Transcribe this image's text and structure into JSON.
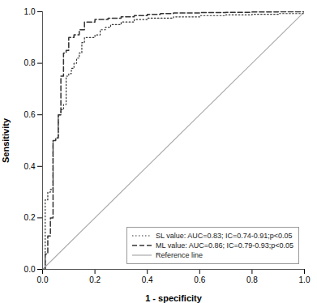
{
  "chart_data": {
    "type": "line",
    "xlabel": "1 - specificity",
    "ylabel": "Sensitivity",
    "xlim": [
      0.0,
      1.0
    ],
    "ylim": [
      0.0,
      1.0
    ],
    "xticks": [
      {
        "value": 0.0,
        "label": "0.0"
      },
      0.2,
      0.4,
      0.6,
      0.8,
      {
        "value": 1.0,
        "label": "1.0"
      }
    ],
    "yticks": [
      {
        "value": 0.0,
        "label": "0.0"
      },
      0.2,
      0.4,
      0.6,
      0.8,
      {
        "value": 1.0,
        "label": "1.0"
      }
    ],
    "grid": false,
    "legend": "lower right",
    "series": [
      {
        "name": "SL value: AUC=0.83; IC=0.74-0.91;p<0.05",
        "color": "#333333",
        "line_style": "dotted",
        "x": [
          0.0,
          0.01,
          0.01,
          0.02,
          0.02,
          0.03,
          0.03,
          0.04,
          0.04,
          0.05,
          0.05,
          0.06,
          0.06,
          0.07,
          0.07,
          0.08,
          0.08,
          0.09,
          0.09,
          0.1,
          0.1,
          0.11,
          0.11,
          0.12,
          0.12,
          0.13,
          0.13,
          0.14,
          0.14,
          0.15,
          0.15,
          0.16,
          0.16,
          0.2,
          0.2,
          0.22,
          0.22,
          0.24,
          0.24,
          0.26,
          0.26,
          0.3,
          0.3,
          0.35,
          0.35,
          0.4,
          0.4,
          0.5,
          0.5,
          0.6,
          0.6,
          0.7,
          0.7,
          0.8,
          0.8,
          0.9,
          0.9,
          1.0
        ],
        "values": [
          0.0,
          0.0,
          0.27,
          0.27,
          0.3,
          0.3,
          0.31,
          0.31,
          0.5,
          0.5,
          0.51,
          0.51,
          0.6,
          0.6,
          0.62,
          0.62,
          0.64,
          0.64,
          0.75,
          0.75,
          0.76,
          0.76,
          0.78,
          0.78,
          0.8,
          0.8,
          0.82,
          0.82,
          0.84,
          0.84,
          0.88,
          0.88,
          0.9,
          0.9,
          0.91,
          0.91,
          0.93,
          0.93,
          0.94,
          0.94,
          0.95,
          0.95,
          0.96,
          0.96,
          0.97,
          0.97,
          0.975,
          0.975,
          0.98,
          0.98,
          0.985,
          0.985,
          0.988,
          0.988,
          0.99,
          0.99,
          0.993,
          0.993
        ]
      },
      {
        "name": "ML value: AUC=0.86; IC=0.79-0.93;p<0.05",
        "color": "#333333",
        "line_style": "dashed",
        "x": [
          0.0,
          0.01,
          0.01,
          0.02,
          0.02,
          0.03,
          0.03,
          0.04,
          0.04,
          0.05,
          0.05,
          0.06,
          0.06,
          0.07,
          0.07,
          0.08,
          0.08,
          0.09,
          0.09,
          0.1,
          0.1,
          0.12,
          0.12,
          0.14,
          0.14,
          0.16,
          0.16,
          0.2,
          0.2,
          0.25,
          0.25,
          0.3,
          0.3,
          0.35,
          0.35,
          0.4,
          0.4,
          0.45,
          0.45,
          0.5,
          0.5,
          0.6,
          0.6,
          0.7,
          0.7,
          0.8,
          0.8,
          0.9,
          0.9,
          1.0
        ],
        "values": [
          0.0,
          0.0,
          0.06,
          0.06,
          0.13,
          0.13,
          0.2,
          0.2,
          0.5,
          0.5,
          0.51,
          0.51,
          0.6,
          0.6,
          0.75,
          0.75,
          0.84,
          0.84,
          0.85,
          0.85,
          0.9,
          0.9,
          0.91,
          0.91,
          0.93,
          0.93,
          0.96,
          0.96,
          0.97,
          0.97,
          0.975,
          0.975,
          0.98,
          0.98,
          0.985,
          0.985,
          0.99,
          0.99,
          0.993,
          0.993,
          0.995,
          0.995,
          0.997,
          0.997,
          0.998,
          0.998,
          0.999,
          0.999,
          1.0,
          1.0
        ]
      },
      {
        "name": "Reference line",
        "color": "#aaaaaa",
        "line_style": "solid",
        "x": [
          0,
          1
        ],
        "values": [
          0,
          1
        ]
      }
    ]
  }
}
